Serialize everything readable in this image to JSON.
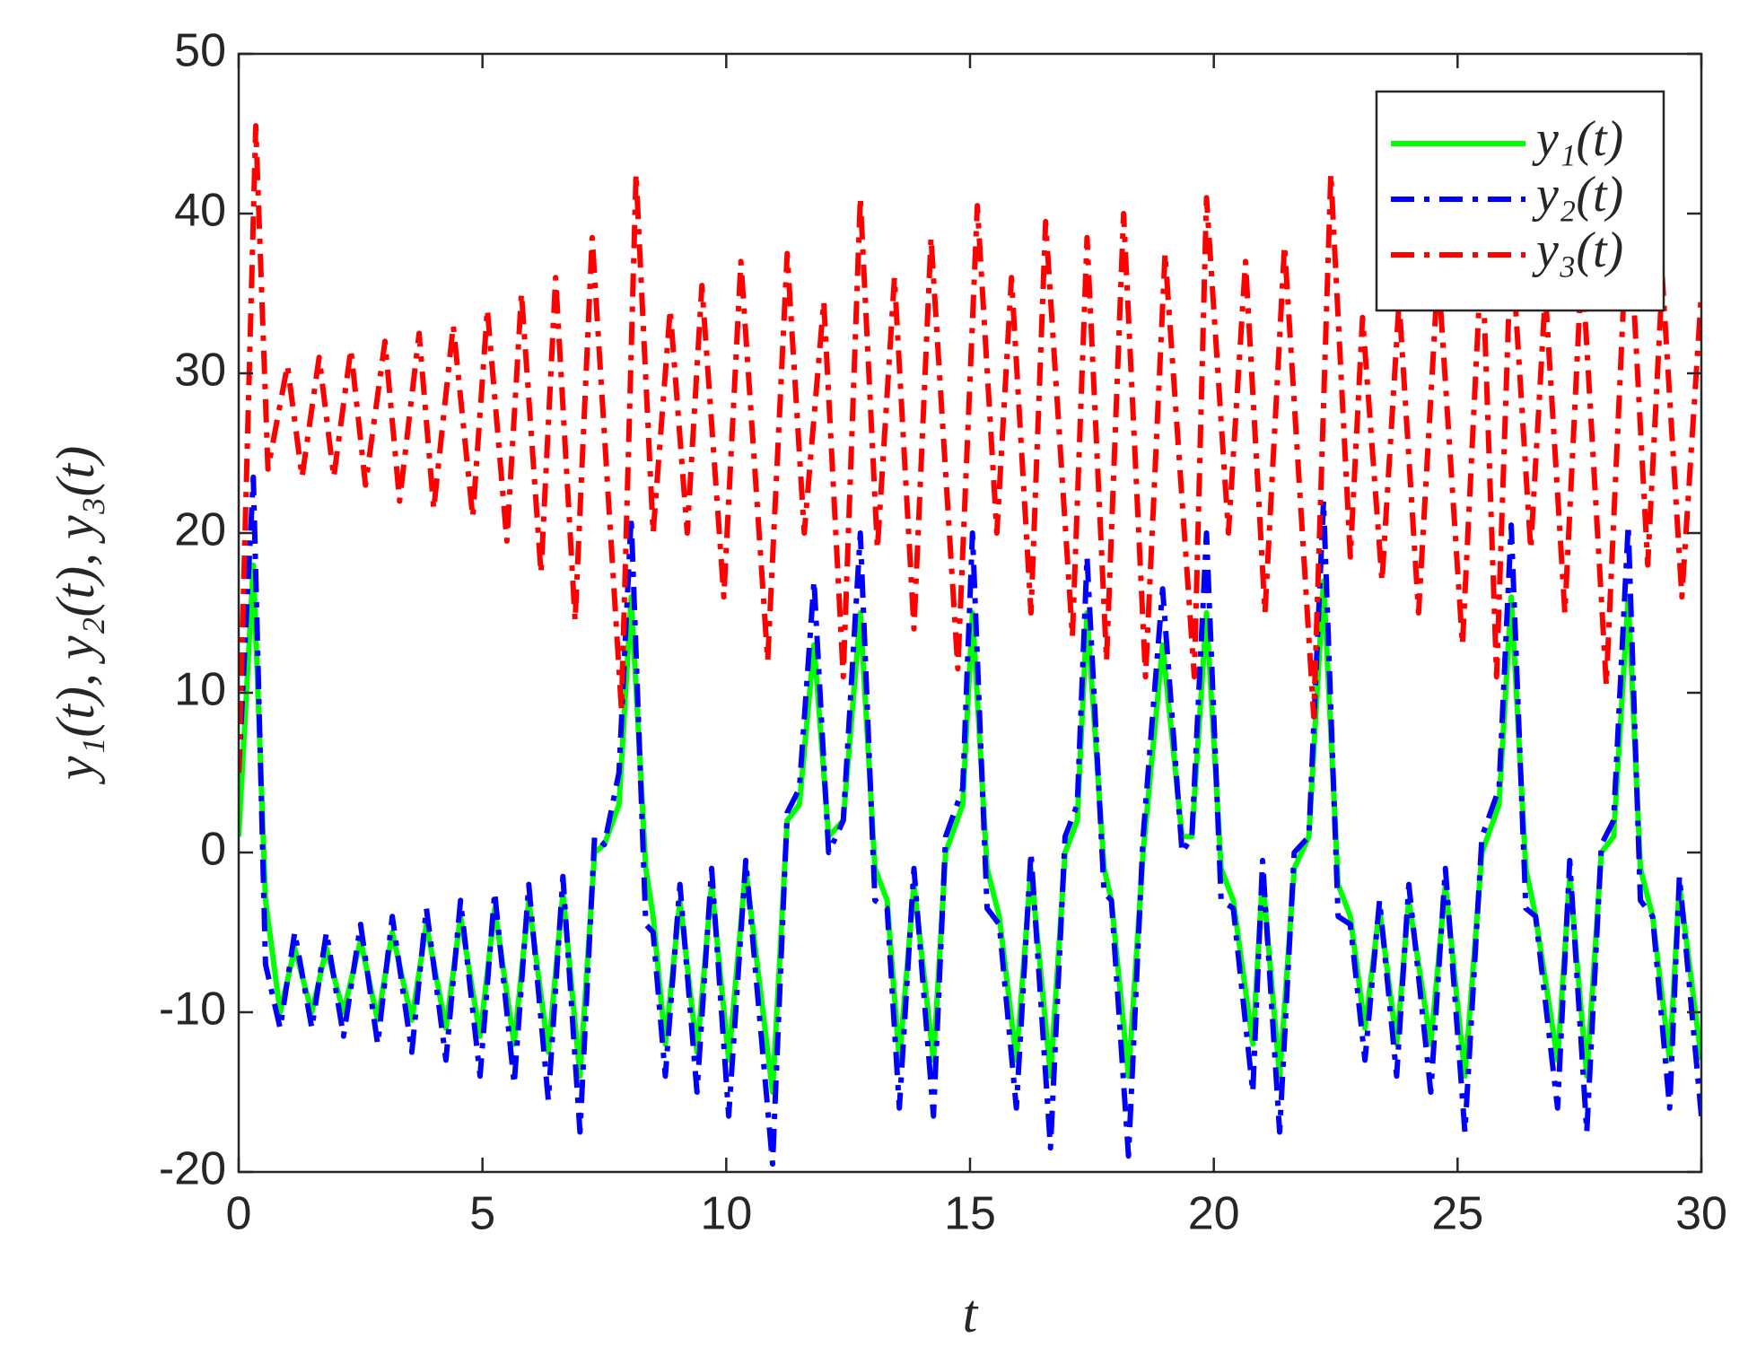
{
  "chart_data": {
    "type": "line",
    "x_label": "t",
    "y_label": "y₁(t), y₂(t), y₃(t)",
    "xlim": [
      0,
      30
    ],
    "xticks": [
      0,
      5,
      10,
      15,
      20,
      25,
      30
    ],
    "ylim": [
      -20,
      50
    ],
    "yticks": [
      -20,
      -10,
      0,
      10,
      20,
      30,
      40,
      50
    ],
    "grid": false,
    "legend": "northeast",
    "series": [
      {
        "name": "y₁(t)",
        "color": "#00ff00",
        "dash": "solid",
        "x": [
          0,
          0.3,
          0.55,
          0.85,
          1.15,
          1.5,
          1.8,
          2.15,
          2.5,
          2.85,
          3.15,
          3.55,
          3.85,
          4.25,
          4.55,
          4.95,
          5.25,
          5.65,
          5.95,
          6.35,
          6.65,
          7.0,
          7.3,
          7.5,
          7.8,
          8.05,
          8.35,
          8.5,
          8.75,
          9.05,
          9.4,
          9.7,
          10.05,
          10.4,
          10.95,
          11.25,
          11.5,
          11.8,
          12.1,
          12.4,
          12.75,
          13.05,
          13.3,
          13.55,
          13.85,
          14.25,
          14.5,
          14.85,
          15.05,
          15.35,
          15.6,
          15.95,
          16.25,
          16.65,
          16.95,
          17.2,
          17.4,
          17.75,
          17.9,
          18.25,
          18.55,
          18.95,
          19.35,
          19.55,
          19.85,
          20.15,
          20.4,
          20.8,
          21.0,
          21.35,
          21.65,
          21.95,
          22.25,
          22.55,
          22.8,
          23.1,
          23.4,
          23.75,
          24.0,
          24.45,
          24.75,
          25.15,
          25.5,
          25.85,
          26.1,
          26.4,
          26.6,
          27.05,
          27.3,
          27.65,
          27.95,
          28.2,
          28.5,
          28.75,
          29.0,
          29.35,
          29.55,
          30
        ],
        "values": [
          1,
          18,
          -3,
          -10,
          -6,
          -10,
          -6,
          -10,
          -5.5,
          -10.5,
          -5,
          -10.5,
          -4.5,
          -11,
          -4,
          -11.5,
          -3.5,
          -12,
          -3,
          -12.5,
          -2.5,
          -14,
          0,
          0.5,
          3,
          16,
          -1,
          -4,
          -12,
          -3,
          -12.5,
          -2,
          -13,
          -1,
          -15,
          2,
          3,
          13,
          1,
          2,
          15,
          -1,
          -3,
          -13,
          -2,
          -13,
          0,
          3,
          15,
          -1,
          -4,
          -13,
          -1,
          -14,
          0,
          2,
          15,
          -1,
          -3,
          -14,
          0,
          13,
          1,
          1,
          15,
          -1,
          -3,
          -12,
          -1.5,
          -14,
          -1,
          1,
          17,
          -2,
          -4,
          -11,
          -3.5,
          -12,
          -3,
          -12,
          -2,
          -14,
          0,
          3,
          16,
          -1,
          -4,
          -13,
          -1.5,
          -14,
          0,
          1,
          16,
          -1,
          -4,
          -13,
          -2,
          -13
        ]
      },
      {
        "name": "y₂(t)",
        "color": "#0000ff",
        "dash": "dashdot",
        "x": [
          0,
          0.3,
          0.55,
          0.85,
          1.15,
          1.5,
          1.8,
          2.15,
          2.5,
          2.85,
          3.15,
          3.55,
          3.85,
          4.25,
          4.55,
          4.95,
          5.25,
          5.65,
          5.95,
          6.35,
          6.65,
          7.0,
          7.3,
          7.5,
          7.8,
          8.05,
          8.35,
          8.5,
          8.75,
          9.05,
          9.4,
          9.7,
          10.05,
          10.4,
          10.95,
          11.25,
          11.5,
          11.8,
          12.1,
          12.4,
          12.75,
          13.05,
          13.3,
          13.55,
          13.85,
          14.25,
          14.5,
          14.85,
          15.05,
          15.35,
          15.6,
          15.95,
          16.25,
          16.65,
          16.95,
          17.2,
          17.4,
          17.75,
          17.9,
          18.25,
          18.55,
          18.95,
          19.35,
          19.55,
          19.85,
          20.15,
          20.4,
          20.8,
          21.0,
          21.35,
          21.65,
          21.95,
          22.25,
          22.55,
          22.8,
          23.1,
          23.4,
          23.75,
          24.0,
          24.45,
          24.75,
          25.15,
          25.5,
          25.85,
          26.1,
          26.4,
          26.6,
          27.05,
          27.3,
          27.65,
          27.95,
          28.2,
          28.5,
          28.75,
          29.0,
          29.35,
          29.55,
          30
        ],
        "values": [
          5,
          23.5,
          -7,
          -11,
          -5,
          -11,
          -5,
          -11.5,
          -4.5,
          -12,
          -4,
          -12.5,
          -3.5,
          -13,
          -3,
          -14,
          -2.5,
          -14.5,
          -2,
          -15.5,
          -1.5,
          -17.5,
          1,
          0.5,
          5,
          21,
          -4.5,
          -5,
          -14,
          -2,
          -15,
          -1,
          -16.5,
          -0.5,
          -19.5,
          2.5,
          4,
          17,
          0,
          2,
          20,
          -3,
          -3.5,
          -16,
          -1,
          -16.5,
          1,
          4,
          20,
          -3.5,
          -4.5,
          -16,
          0,
          -18.5,
          1,
          3,
          18.5,
          -2.5,
          -3,
          -19,
          1,
          16.5,
          0,
          1,
          20,
          -3,
          -3.5,
          -15,
          -0.5,
          -17.5,
          0,
          1,
          22,
          -4,
          -4.5,
          -13,
          -3,
          -14,
          -2,
          -15,
          -1,
          -17.5,
          1,
          4,
          20.5,
          -3.5,
          -4,
          -16,
          -0.5,
          -17.5,
          0.5,
          2,
          20.5,
          -3,
          -4,
          -16,
          -1.5,
          -16.5
        ]
      },
      {
        "name": "y₃(t)",
        "color": "#ff0000",
        "dash": "dashdot",
        "x": [
          0,
          0.35,
          0.6,
          1.0,
          1.3,
          1.65,
          1.95,
          2.3,
          2.6,
          3.0,
          3.3,
          3.7,
          4.0,
          4.4,
          4.8,
          5.1,
          5.5,
          5.8,
          6.2,
          6.5,
          6.9,
          7.25,
          7.85,
          8.15,
          8.5,
          8.85,
          9.2,
          9.5,
          9.95,
          10.3,
          10.85,
          11.25,
          11.6,
          12.0,
          12.4,
          12.75,
          13.1,
          13.45,
          13.85,
          14.2,
          14.75,
          15.15,
          15.55,
          15.85,
          16.25,
          16.55,
          17.1,
          17.4,
          17.8,
          18.15,
          18.6,
          19.0,
          19.6,
          19.85,
          20.3,
          20.65,
          21.05,
          21.45,
          22.05,
          22.4,
          22.8,
          23.05,
          23.45,
          23.8,
          24.2,
          24.6,
          25.1,
          25.5,
          25.8,
          26.1,
          26.5,
          26.8,
          27.2,
          27.55,
          28.05,
          28.5,
          28.9,
          29.2,
          29.6,
          30
        ],
        "values": [
          5,
          45.5,
          24,
          30.5,
          23.5,
          31,
          23.5,
          31.5,
          23,
          32,
          22,
          32.5,
          21.5,
          33,
          21,
          34,
          19.5,
          35,
          17.5,
          36,
          14.5,
          38.5,
          9,
          42.5,
          20,
          34,
          20,
          35.5,
          16,
          37,
          12,
          37.5,
          20,
          34.5,
          11,
          41,
          19,
          36,
          14,
          38.5,
          11.5,
          40.5,
          20,
          36,
          15,
          39.5,
          13.5,
          38.5,
          12,
          40,
          11,
          37.5,
          11,
          41,
          20,
          37,
          15,
          38,
          8.5,
          42.5,
          18.5,
          33.5,
          17,
          34.5,
          15,
          36.5,
          13,
          38,
          11,
          38.5,
          19,
          35,
          15,
          37,
          10.5,
          41,
          18,
          36,
          16,
          35
        ]
      }
    ]
  }
}
